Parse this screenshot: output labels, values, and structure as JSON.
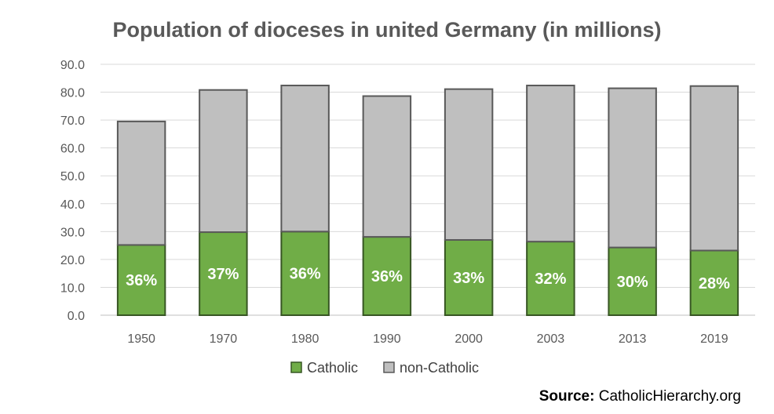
{
  "chart_data": {
    "type": "bar",
    "stacked": true,
    "title": "Population of dioceses in united Germany (in millions)",
    "categories": [
      "1950",
      "1970",
      "1980",
      "1990",
      "2000",
      "2003",
      "2013",
      "2019"
    ],
    "series": [
      {
        "name": "Catholic",
        "values": [
          25.2,
          29.8,
          30.0,
          28.1,
          27.0,
          26.4,
          24.3,
          23.2
        ],
        "labels": [
          "36%",
          "37%",
          "36%",
          "36%",
          "33%",
          "32%",
          "30%",
          "28%"
        ],
        "color": "#70ad47",
        "stroke": "#375623"
      },
      {
        "name": "non-Catholic",
        "values": [
          44.3,
          51.0,
          52.4,
          50.5,
          54.1,
          56.0,
          57.1,
          59.0
        ],
        "color": "#bfbfbf",
        "stroke": "#595959"
      }
    ],
    "ylim": [
      0,
      90
    ],
    "yticks": [
      "0.0",
      "10.0",
      "20.0",
      "30.0",
      "40.0",
      "50.0",
      "60.0",
      "70.0",
      "80.0",
      "90.0"
    ],
    "grid": true,
    "legend_position": "bottom",
    "xlabel": "",
    "ylabel": ""
  },
  "source": {
    "label": "Source:",
    "text": "CatholicHierarchy.org"
  }
}
